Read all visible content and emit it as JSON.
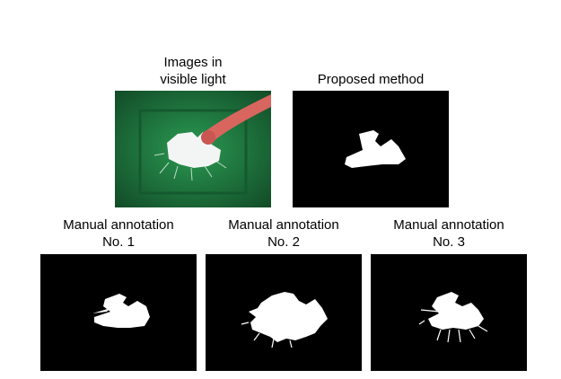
{
  "figure": {
    "panels": [
      {
        "id": "visible",
        "caption_line1": "Images in",
        "caption_line2": "visible light",
        "kind": "photo"
      },
      {
        "id": "proposed",
        "caption_line1": "Proposed method",
        "caption_line2": "",
        "kind": "mask"
      },
      {
        "id": "manual1",
        "caption_line1": "Manual annotation",
        "caption_line2": "No. 1",
        "kind": "mask"
      },
      {
        "id": "manual2",
        "caption_line1": "Manual annotation",
        "caption_line2": "No. 2",
        "kind": "mask"
      },
      {
        "id": "manual3",
        "caption_line1": "Manual annotation",
        "caption_line2": "No. 3",
        "kind": "mask"
      }
    ],
    "colors": {
      "mask_background": "#000000",
      "mask_foreground": "#ffffff",
      "photo_background": "#1f7a3e",
      "skin": "#d9655f"
    }
  }
}
